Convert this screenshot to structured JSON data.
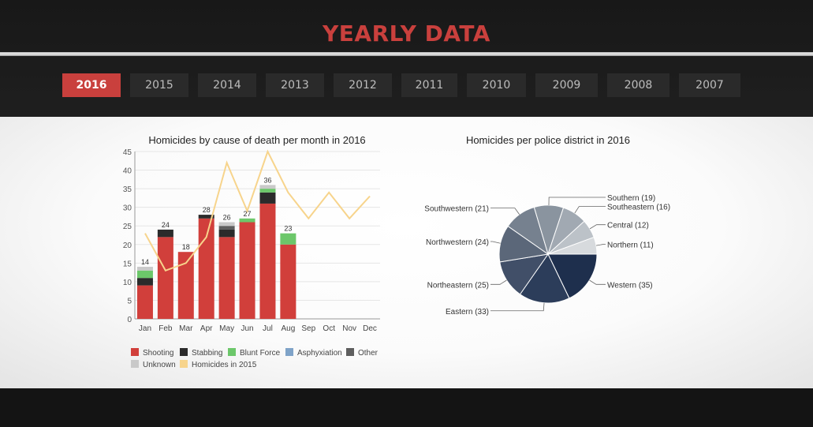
{
  "header": {
    "title": "YEARLY DATA"
  },
  "tabs": [
    {
      "label": "2016",
      "active": true
    },
    {
      "label": "2015",
      "active": false
    },
    {
      "label": "2014",
      "active": false
    },
    {
      "label": "2013",
      "active": false
    },
    {
      "label": "2012",
      "active": false
    },
    {
      "label": "2011",
      "active": false
    },
    {
      "label": "2010",
      "active": false
    },
    {
      "label": "2009",
      "active": false
    },
    {
      "label": "2008",
      "active": false
    },
    {
      "label": "2007",
      "active": false
    }
  ],
  "colors": {
    "accent": "#c9403d",
    "tab_bg": "#2a2a2a",
    "tab_text": "#bdbdbd"
  },
  "chart_data": [
    {
      "type": "bar",
      "title": "Homicides by cause of death per month in 2016",
      "categories": [
        "Jan",
        "Feb",
        "Mar",
        "Apr",
        "May",
        "Jun",
        "Jul",
        "Aug",
        "Sep",
        "Oct",
        "Nov",
        "Dec"
      ],
      "ylim": [
        0,
        45
      ],
      "yticks": [
        0,
        5,
        10,
        15,
        20,
        25,
        30,
        35,
        40,
        45
      ],
      "grid": true,
      "legend_position": "bottom",
      "stacked": true,
      "series": [
        {
          "name": "Shooting",
          "color": "#d13f3b",
          "values": [
            9,
            22,
            18,
            27,
            22,
            26,
            31,
            20,
            null,
            null,
            null,
            null
          ]
        },
        {
          "name": "Stabbing",
          "color": "#2b2b2b",
          "values": [
            2,
            2,
            0,
            1,
            2,
            0,
            3,
            0,
            null,
            null,
            null,
            null
          ]
        },
        {
          "name": "Blunt Force",
          "color": "#6cc76a",
          "values": [
            2,
            0,
            0,
            0,
            0,
            1,
            1,
            3,
            null,
            null,
            null,
            null
          ]
        },
        {
          "name": "Asphyxiation",
          "color": "#7fa3c8",
          "values": [
            0,
            0,
            0,
            0,
            0,
            0,
            0,
            0,
            null,
            null,
            null,
            null
          ]
        },
        {
          "name": "Other",
          "color": "#5e5e5e",
          "values": [
            0,
            0,
            0,
            0,
            1,
            0,
            0,
            0,
            null,
            null,
            null,
            null
          ]
        },
        {
          "name": "Unknown",
          "color": "#c9c9c9",
          "values": [
            1,
            0,
            0,
            0,
            1,
            0,
            1,
            0,
            null,
            null,
            null,
            null
          ]
        }
      ],
      "totals": [
        14,
        24,
        18,
        28,
        26,
        27,
        36,
        23,
        null,
        null,
        null,
        null
      ],
      "line_series": {
        "name": "Homicides in 2015",
        "color": "#f7d48c",
        "values": [
          23,
          13,
          15,
          22,
          42,
          29,
          45,
          34,
          27,
          34,
          27,
          33
        ]
      }
    },
    {
      "type": "pie",
      "title": "Homicides per police district in 2016",
      "slices": [
        {
          "label": "Western (35)",
          "value": 35,
          "color": "#1e2f4d",
          "side": "right"
        },
        {
          "label": "Eastern (33)",
          "value": 33,
          "color": "#2c3d5a",
          "side": "left"
        },
        {
          "label": "Northeastern (25)",
          "value": 25,
          "color": "#414f68",
          "side": "left"
        },
        {
          "label": "Northwestern (24)",
          "value": 24,
          "color": "#5b6779",
          "side": "left"
        },
        {
          "label": "Southwestern (21)",
          "value": 21,
          "color": "#76818f",
          "side": "left"
        },
        {
          "label": "Southern (19)",
          "value": 19,
          "color": "#8a949f",
          "side": "right"
        },
        {
          "label": "Southeastern (16)",
          "value": 16,
          "color": "#a1a9b2",
          "side": "right"
        },
        {
          "label": "Central (12)",
          "value": 12,
          "color": "#bcc2c8",
          "side": "right"
        },
        {
          "label": "Northern (11)",
          "value": 11,
          "color": "#d7dadd",
          "side": "right"
        }
      ]
    }
  ]
}
